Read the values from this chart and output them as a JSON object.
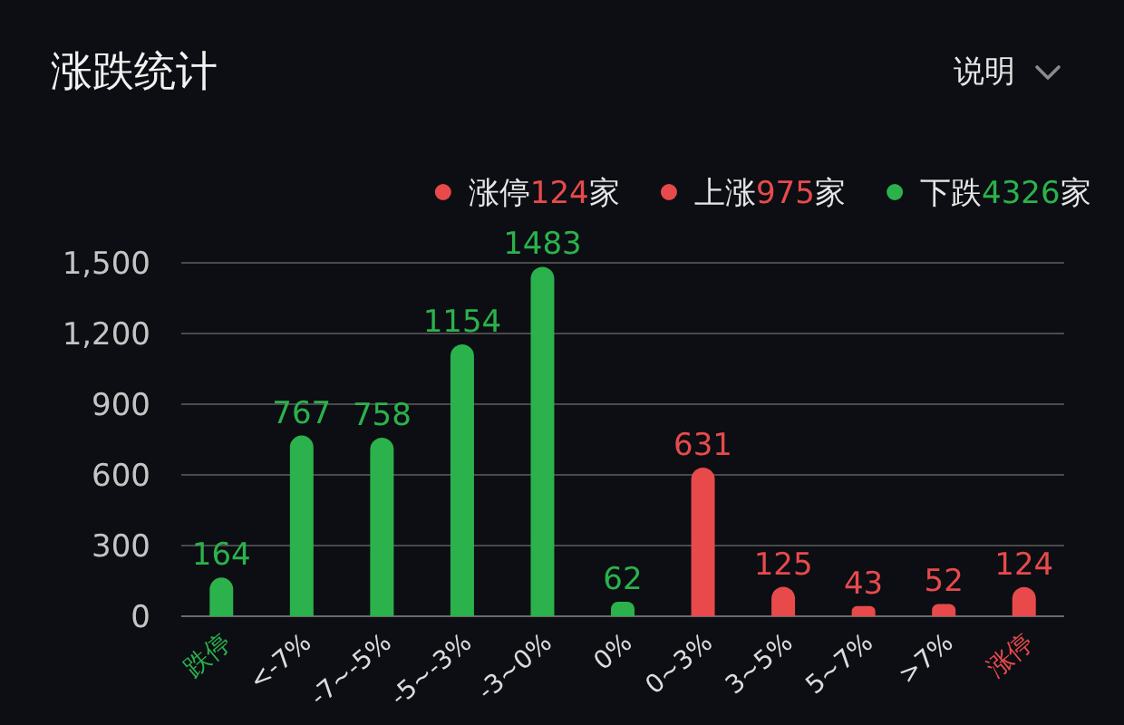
{
  "chart_data": {
    "type": "bar",
    "title": "涨跌统计",
    "categories": [
      "跌停",
      "<-7%",
      "-7~-5%",
      "-5~-3%",
      "-3~0%",
      "0%",
      "0~3%",
      "3~5%",
      "5~7%",
      ">7%",
      "涨停"
    ],
    "values": [
      164,
      767,
      758,
      1154,
      1483,
      62,
      631,
      125,
      43,
      52,
      124
    ],
    "colors": [
      "#2bb24c",
      "#2bb24c",
      "#2bb24c",
      "#2bb24c",
      "#2bb24c",
      "#2bb24c",
      "#e84a4c",
      "#e84a4c",
      "#e84a4c",
      "#e84a4c",
      "#e84a4c"
    ],
    "data_labels": true,
    "ylim": [
      0,
      1500
    ],
    "yticks": [
      0,
      300,
      600,
      900,
      {
        "value": 1200,
        "label": "1,200"
      },
      {
        "value": 1500,
        "label": "1,500"
      }
    ],
    "grid": "y",
    "annotations": [
      "涨停124家",
      "上涨975家",
      "下跌4326家",
      "说明"
    ]
  }
}
